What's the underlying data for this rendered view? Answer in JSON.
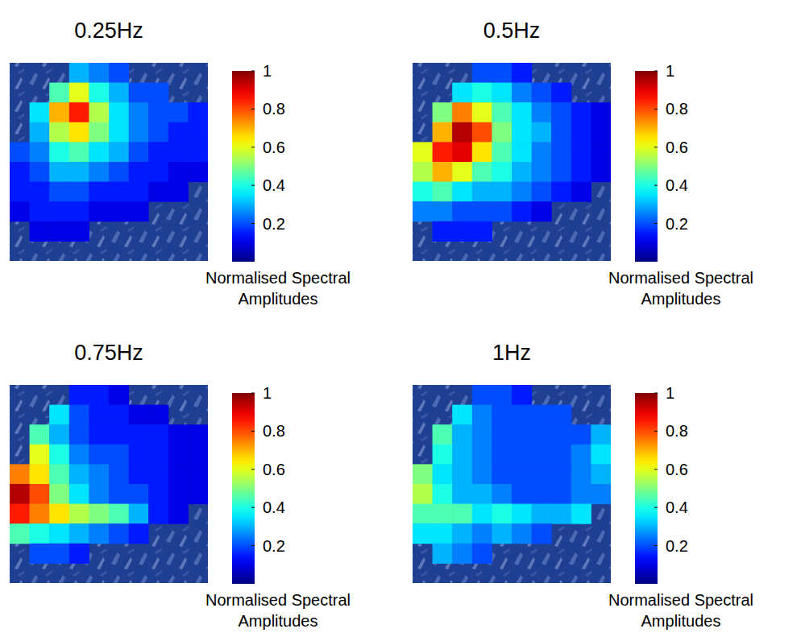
{
  "chart_data": [
    {
      "type": "heatmap",
      "title": "0.25Hz",
      "tick_labels": false,
      "cells": [
        [
          null,
          null,
          null,
          0.3,
          0.25,
          0.2,
          null,
          null,
          null,
          null
        ],
        [
          null,
          null,
          0.45,
          0.6,
          0.4,
          0.3,
          0.2,
          0.2,
          null,
          null
        ],
        [
          null,
          0.35,
          0.7,
          0.85,
          0.55,
          0.35,
          0.25,
          0.2,
          0.2,
          0.15
        ],
        [
          null,
          0.3,
          0.55,
          0.65,
          0.5,
          0.35,
          0.25,
          0.2,
          0.15,
          0.15
        ],
        [
          0.2,
          0.25,
          0.4,
          0.45,
          0.35,
          0.3,
          0.2,
          0.15,
          0.15,
          0.15
        ],
        [
          0.15,
          0.2,
          0.3,
          0.3,
          0.25,
          0.2,
          0.15,
          0.15,
          0.1,
          0.1
        ],
        [
          0.15,
          0.15,
          0.2,
          0.2,
          0.15,
          0.15,
          0.15,
          0.1,
          0.1,
          null
        ],
        [
          0.1,
          0.15,
          0.15,
          0.15,
          0.1,
          0.1,
          0.1,
          null,
          null,
          null
        ],
        [
          null,
          0.1,
          0.1,
          0.1,
          null,
          null,
          null,
          null,
          null,
          null
        ],
        [
          null,
          null,
          null,
          null,
          null,
          null,
          null,
          null,
          null,
          null
        ]
      ],
      "colorbar_label": "Normalised Spectral Amplitudes",
      "colorbar_range": [
        0,
        1
      ],
      "colorbar_ticks": [
        0.2,
        0.4,
        0.6,
        0.8,
        1
      ]
    },
    {
      "type": "heatmap",
      "title": "0.5Hz",
      "tick_labels": false,
      "cells": [
        [
          null,
          null,
          null,
          0.2,
          0.2,
          0.15,
          null,
          null,
          null,
          null
        ],
        [
          null,
          null,
          0.35,
          0.4,
          0.35,
          0.25,
          0.2,
          0.15,
          null,
          null
        ],
        [
          null,
          0.5,
          0.75,
          0.6,
          0.45,
          0.35,
          0.25,
          0.2,
          0.15,
          0.1
        ],
        [
          null,
          0.7,
          0.95,
          0.8,
          0.5,
          0.35,
          0.3,
          0.2,
          0.15,
          0.1
        ],
        [
          0.6,
          0.85,
          0.9,
          0.65,
          0.45,
          0.35,
          0.25,
          0.2,
          0.15,
          0.1
        ],
        [
          0.55,
          0.7,
          0.6,
          0.45,
          0.4,
          0.3,
          0.25,
          0.2,
          0.15,
          0.1
        ],
        [
          0.4,
          0.45,
          0.35,
          0.3,
          0.3,
          0.25,
          0.2,
          0.15,
          0.1,
          null
        ],
        [
          0.25,
          0.25,
          0.2,
          0.2,
          0.2,
          0.15,
          0.1,
          null,
          null,
          null
        ],
        [
          null,
          0.15,
          0.15,
          0.15,
          null,
          null,
          null,
          null,
          null,
          null
        ],
        [
          null,
          null,
          null,
          null,
          null,
          null,
          null,
          null,
          null,
          null
        ]
      ],
      "colorbar_label": "Normalised Spectral Amplitudes",
      "colorbar_range": [
        0,
        1
      ],
      "colorbar_ticks": [
        0.2,
        0.4,
        0.6,
        0.8,
        1
      ]
    },
    {
      "type": "heatmap",
      "title": "0.75Hz",
      "tick_labels": false,
      "cells": [
        [
          null,
          null,
          null,
          0.15,
          0.15,
          0.1,
          null,
          null,
          null,
          null
        ],
        [
          null,
          null,
          0.35,
          0.2,
          0.15,
          0.15,
          0.1,
          0.1,
          null,
          null
        ],
        [
          null,
          0.45,
          0.3,
          0.2,
          0.15,
          0.15,
          0.15,
          0.15,
          0.1,
          0.1
        ],
        [
          null,
          0.6,
          0.4,
          0.25,
          0.2,
          0.2,
          0.15,
          0.15,
          0.1,
          0.1
        ],
        [
          0.75,
          0.65,
          0.45,
          0.3,
          0.25,
          0.2,
          0.15,
          0.15,
          0.1,
          0.1
        ],
        [
          0.95,
          0.8,
          0.5,
          0.35,
          0.25,
          0.2,
          0.2,
          0.15,
          0.1,
          0.1
        ],
        [
          0.85,
          0.75,
          0.65,
          0.55,
          0.5,
          0.45,
          0.3,
          0.15,
          0.1,
          null
        ],
        [
          0.45,
          0.4,
          0.35,
          0.3,
          0.25,
          0.2,
          0.15,
          null,
          null,
          null
        ],
        [
          null,
          0.2,
          0.2,
          0.15,
          null,
          null,
          null,
          null,
          null,
          null
        ],
        [
          null,
          null,
          null,
          null,
          null,
          null,
          null,
          null,
          null,
          null
        ]
      ],
      "colorbar_label": "Normalised Spectral Amplitudes",
      "colorbar_range": [
        0,
        1
      ],
      "colorbar_ticks": [
        0.2,
        0.4,
        0.6,
        0.8,
        1
      ]
    },
    {
      "type": "heatmap",
      "title": "1Hz",
      "tick_labels": false,
      "cells": [
        [
          null,
          null,
          null,
          0.2,
          0.2,
          0.15,
          null,
          null,
          null,
          null
        ],
        [
          null,
          null,
          0.35,
          0.25,
          0.2,
          0.2,
          0.2,
          0.2,
          null,
          null
        ],
        [
          null,
          0.45,
          0.3,
          0.25,
          0.2,
          0.2,
          0.2,
          0.2,
          0.2,
          0.3
        ],
        [
          null,
          0.4,
          0.3,
          0.25,
          0.2,
          0.2,
          0.2,
          0.2,
          0.25,
          0.35
        ],
        [
          0.5,
          0.35,
          0.3,
          0.25,
          0.2,
          0.2,
          0.2,
          0.2,
          0.25,
          0.3
        ],
        [
          0.55,
          0.4,
          0.3,
          0.3,
          0.25,
          0.2,
          0.2,
          0.2,
          0.25,
          0.25
        ],
        [
          0.45,
          0.45,
          0.45,
          0.35,
          0.4,
          0.35,
          0.3,
          0.3,
          0.35,
          null
        ],
        [
          0.35,
          0.35,
          0.3,
          0.25,
          0.3,
          0.25,
          0.2,
          null,
          null,
          null
        ],
        [
          null,
          0.3,
          0.25,
          0.2,
          null,
          null,
          null,
          null,
          null,
          null
        ],
        [
          null,
          null,
          null,
          null,
          null,
          null,
          null,
          null,
          null,
          null
        ]
      ],
      "colorbar_label": "Normalised Spectral Amplitudes",
      "colorbar_range": [
        0,
        1
      ],
      "colorbar_ticks": [
        0.2,
        0.4,
        0.6,
        0.8,
        1
      ]
    }
  ]
}
